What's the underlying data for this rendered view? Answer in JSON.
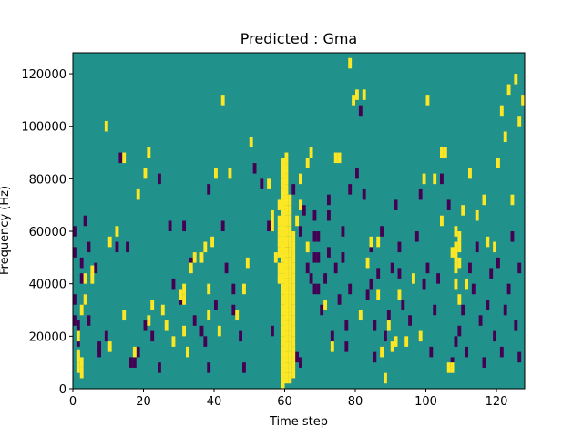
{
  "chart_data": {
    "type": "heatmap",
    "title": "Predicted : Gma",
    "xlabel": "Time step",
    "ylabel": "Frequency (Hz)",
    "xlim": [
      0,
      128
    ],
    "ylim": [
      0,
      128000
    ],
    "x_ticks": [
      0,
      20,
      40,
      60,
      80,
      100,
      120
    ],
    "x_tick_labels": [
      "0",
      "20",
      "40",
      "60",
      "80",
      "100",
      "120"
    ],
    "y_ticks": [
      0,
      20000,
      40000,
      60000,
      80000,
      100000,
      120000
    ],
    "y_tick_labels": [
      "0",
      "20000",
      "40000",
      "60000",
      "80000",
      "100000",
      "120000"
    ],
    "cell_time_width": 1,
    "cell_freq_height": 2000,
    "colors": {
      "background": "#21918c",
      "high": "#fde725",
      "low": "#440154"
    },
    "high_cells": [
      [
        1,
        18
      ],
      [
        1,
        10
      ],
      [
        1,
        6
      ],
      [
        1,
        11
      ],
      [
        2,
        4
      ],
      [
        2,
        8
      ],
      [
        2,
        28
      ],
      [
        3,
        32
      ],
      [
        3,
        40
      ],
      [
        5,
        40
      ],
      [
        5,
        43
      ],
      [
        9,
        98
      ],
      [
        10,
        54
      ],
      [
        10,
        14
      ],
      [
        12,
        58
      ],
      [
        14,
        86
      ],
      [
        14,
        26
      ],
      [
        17,
        12
      ],
      [
        18,
        72
      ],
      [
        20,
        80
      ],
      [
        21,
        88
      ],
      [
        21,
        24
      ],
      [
        22,
        30
      ],
      [
        25,
        28
      ],
      [
        26,
        22
      ],
      [
        28,
        16
      ],
      [
        30,
        34
      ],
      [
        31,
        20
      ],
      [
        31,
        32
      ],
      [
        31,
        36
      ],
      [
        32,
        12
      ],
      [
        33,
        44
      ],
      [
        34,
        48
      ],
      [
        36,
        48
      ],
      [
        37,
        52
      ],
      [
        38,
        26
      ],
      [
        38,
        36
      ],
      [
        39,
        54
      ],
      [
        40,
        80
      ],
      [
        41,
        20
      ],
      [
        42,
        108
      ],
      [
        44,
        80
      ],
      [
        46,
        26
      ],
      [
        48,
        36
      ],
      [
        49,
        46
      ],
      [
        50,
        92
      ],
      [
        55,
        76
      ],
      [
        56,
        60
      ],
      [
        56,
        64
      ],
      [
        57,
        48
      ],
      [
        58,
        40
      ],
      [
        58,
        44
      ],
      [
        58,
        50
      ],
      [
        58,
        54
      ],
      [
        58,
        58
      ],
      [
        58,
        62
      ],
      [
        58,
        68
      ],
      [
        59,
        0
      ],
      [
        59,
        4
      ],
      [
        59,
        8
      ],
      [
        59,
        12
      ],
      [
        59,
        16
      ],
      [
        59,
        20
      ],
      [
        59,
        24
      ],
      [
        59,
        28
      ],
      [
        59,
        32
      ],
      [
        59,
        36
      ],
      [
        59,
        40
      ],
      [
        59,
        44
      ],
      [
        59,
        48
      ],
      [
        59,
        52
      ],
      [
        59,
        56
      ],
      [
        59,
        60
      ],
      [
        59,
        64
      ],
      [
        59,
        68
      ],
      [
        59,
        72
      ],
      [
        59,
        76
      ],
      [
        59,
        80
      ],
      [
        59,
        84
      ],
      [
        60,
        2
      ],
      [
        60,
        6
      ],
      [
        60,
        10
      ],
      [
        60,
        14
      ],
      [
        60,
        18
      ],
      [
        60,
        22
      ],
      [
        60,
        26
      ],
      [
        60,
        30
      ],
      [
        60,
        34
      ],
      [
        60,
        38
      ],
      [
        60,
        42
      ],
      [
        60,
        46
      ],
      [
        60,
        50
      ],
      [
        60,
        54
      ],
      [
        60,
        58
      ],
      [
        60,
        62
      ],
      [
        60,
        66
      ],
      [
        60,
        70
      ],
      [
        60,
        74
      ],
      [
        60,
        78
      ],
      [
        60,
        82
      ],
      [
        60,
        86
      ],
      [
        61,
        2
      ],
      [
        61,
        6
      ],
      [
        61,
        10
      ],
      [
        61,
        14
      ],
      [
        61,
        18
      ],
      [
        61,
        22
      ],
      [
        61,
        26
      ],
      [
        61,
        30
      ],
      [
        61,
        34
      ],
      [
        61,
        38
      ],
      [
        61,
        42
      ],
      [
        61,
        46
      ],
      [
        61,
        50
      ],
      [
        61,
        54
      ],
      [
        61,
        58
      ],
      [
        61,
        62
      ],
      [
        61,
        66
      ],
      [
        61,
        70
      ],
      [
        62,
        4
      ],
      [
        62,
        8
      ],
      [
        62,
        12
      ],
      [
        62,
        16
      ],
      [
        62,
        20
      ],
      [
        62,
        24
      ],
      [
        62,
        28
      ],
      [
        62,
        32
      ],
      [
        62,
        36
      ],
      [
        62,
        40
      ],
      [
        62,
        44
      ],
      [
        62,
        48
      ],
      [
        62,
        52
      ],
      [
        62,
        56
      ],
      [
        63,
        62
      ],
      [
        64,
        68
      ],
      [
        64,
        78
      ],
      [
        66,
        84
      ],
      [
        66,
        52
      ],
      [
        67,
        88
      ],
      [
        71,
        30
      ],
      [
        73,
        14
      ],
      [
        74,
        86
      ],
      [
        75,
        86
      ],
      [
        78,
        122
      ],
      [
        79,
        108
      ],
      [
        80,
        110
      ],
      [
        81,
        26
      ],
      [
        82,
        110
      ],
      [
        83,
        46
      ],
      [
        84,
        54
      ],
      [
        86,
        54
      ],
      [
        86,
        34
      ],
      [
        87,
        12
      ],
      [
        88,
        2
      ],
      [
        89,
        22
      ],
      [
        90,
        14
      ],
      [
        91,
        16
      ],
      [
        92,
        34
      ],
      [
        94,
        16
      ],
      [
        96,
        40
      ],
      [
        98,
        18
      ],
      [
        99,
        78
      ],
      [
        100,
        108
      ],
      [
        102,
        78
      ],
      [
        104,
        62
      ],
      [
        104,
        88
      ],
      [
        105,
        88
      ],
      [
        106,
        6
      ],
      [
        107,
        6
      ],
      [
        107,
        50
      ],
      [
        108,
        38
      ],
      [
        108,
        44
      ],
      [
        108,
        48
      ],
      [
        108,
        52
      ],
      [
        108,
        58
      ],
      [
        109,
        32
      ],
      [
        109,
        46
      ],
      [
        109,
        52
      ],
      [
        109,
        56
      ],
      [
        110,
        66
      ],
      [
        111,
        38
      ],
      [
        112,
        80
      ],
      [
        114,
        64
      ],
      [
        116,
        70
      ],
      [
        117,
        54
      ],
      [
        119,
        52
      ],
      [
        120,
        84
      ],
      [
        121,
        104
      ],
      [
        122,
        94
      ],
      [
        123,
        112
      ],
      [
        124,
        70
      ],
      [
        125,
        116
      ],
      [
        126,
        100
      ],
      [
        127,
        108
      ]
    ],
    "low_cells": [
      [
        0,
        24
      ],
      [
        0,
        32
      ],
      [
        0,
        50
      ],
      [
        0,
        58
      ],
      [
        1,
        16
      ],
      [
        1,
        22
      ],
      [
        2,
        40
      ],
      [
        2,
        46
      ],
      [
        3,
        32
      ],
      [
        3,
        62
      ],
      [
        4,
        52
      ],
      [
        4,
        24
      ],
      [
        6,
        44
      ],
      [
        7,
        12
      ],
      [
        7,
        14
      ],
      [
        9,
        18
      ],
      [
        12,
        52
      ],
      [
        13,
        86
      ],
      [
        15,
        52
      ],
      [
        16,
        8
      ],
      [
        17,
        8
      ],
      [
        18,
        12
      ],
      [
        20,
        22
      ],
      [
        22,
        18
      ],
      [
        24,
        6
      ],
      [
        24,
        78
      ],
      [
        27,
        60
      ],
      [
        28,
        38
      ],
      [
        30,
        32
      ],
      [
        31,
        60
      ],
      [
        33,
        46
      ],
      [
        34,
        24
      ],
      [
        36,
        20
      ],
      [
        37,
        16
      ],
      [
        38,
        6
      ],
      [
        38,
        74
      ],
      [
        40,
        30
      ],
      [
        42,
        60
      ],
      [
        43,
        44
      ],
      [
        45,
        28
      ],
      [
        45,
        36
      ],
      [
        47,
        18
      ],
      [
        48,
        6
      ],
      [
        51,
        82
      ],
      [
        53,
        76
      ],
      [
        55,
        60
      ],
      [
        56,
        20
      ],
      [
        59,
        46
      ],
      [
        60,
        52
      ],
      [
        62,
        74
      ],
      [
        63,
        10
      ],
      [
        64,
        8
      ],
      [
        64,
        58
      ],
      [
        65,
        66
      ],
      [
        66,
        44
      ],
      [
        67,
        40
      ],
      [
        68,
        36
      ],
      [
        68,
        48
      ],
      [
        68,
        56
      ],
      [
        68,
        64
      ],
      [
        69,
        36
      ],
      [
        69,
        48
      ],
      [
        69,
        56
      ],
      [
        70,
        28
      ],
      [
        71,
        40
      ],
      [
        72,
        50
      ],
      [
        72,
        64
      ],
      [
        72,
        70
      ],
      [
        73,
        18
      ],
      [
        74,
        44
      ],
      [
        75,
        32
      ],
      [
        76,
        48
      ],
      [
        76,
        58
      ],
      [
        77,
        14
      ],
      [
        77,
        22
      ],
      [
        78,
        36
      ],
      [
        78,
        74
      ],
      [
        80,
        80
      ],
      [
        81,
        104
      ],
      [
        82,
        72
      ],
      [
        83,
        34
      ],
      [
        84,
        38
      ],
      [
        84,
        52
      ],
      [
        85,
        10
      ],
      [
        85,
        22
      ],
      [
        86,
        42
      ],
      [
        87,
        58
      ],
      [
        88,
        18
      ],
      [
        89,
        26
      ],
      [
        90,
        44
      ],
      [
        91,
        68
      ],
      [
        92,
        42
      ],
      [
        92,
        52
      ],
      [
        93,
        30
      ],
      [
        95,
        24
      ],
      [
        97,
        56
      ],
      [
        98,
        72
      ],
      [
        99,
        38
      ],
      [
        100,
        44
      ],
      [
        101,
        12
      ],
      [
        102,
        28
      ],
      [
        103,
        40
      ],
      [
        104,
        78
      ],
      [
        106,
        68
      ],
      [
        107,
        8
      ],
      [
        108,
        16
      ],
      [
        109,
        20
      ],
      [
        110,
        28
      ],
      [
        111,
        12
      ],
      [
        112,
        44
      ],
      [
        113,
        36
      ],
      [
        114,
        52
      ],
      [
        115,
        24
      ],
      [
        116,
        8
      ],
      [
        117,
        30
      ],
      [
        118,
        42
      ],
      [
        119,
        18
      ],
      [
        120,
        46
      ],
      [
        121,
        12
      ],
      [
        122,
        28
      ],
      [
        123,
        36
      ],
      [
        124,
        56
      ],
      [
        125,
        22
      ],
      [
        126,
        10
      ],
      [
        126,
        44
      ]
    ]
  }
}
